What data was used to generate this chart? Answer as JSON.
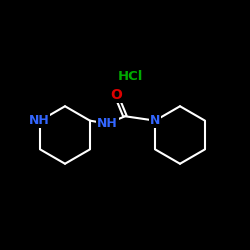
{
  "background_color": "#000000",
  "bond_color": "#ffffff",
  "bond_width": 1.5,
  "n_color": "#3366ff",
  "o_color": "#dd0000",
  "hcl_color": "#00aa00",
  "nh_label": "NH",
  "n_label": "N",
  "o_label": "O",
  "hcl_label": "HCl",
  "figsize": [
    2.5,
    2.5
  ],
  "dpi": 100,
  "xlim": [
    0,
    10
  ],
  "ylim": [
    0,
    10
  ]
}
